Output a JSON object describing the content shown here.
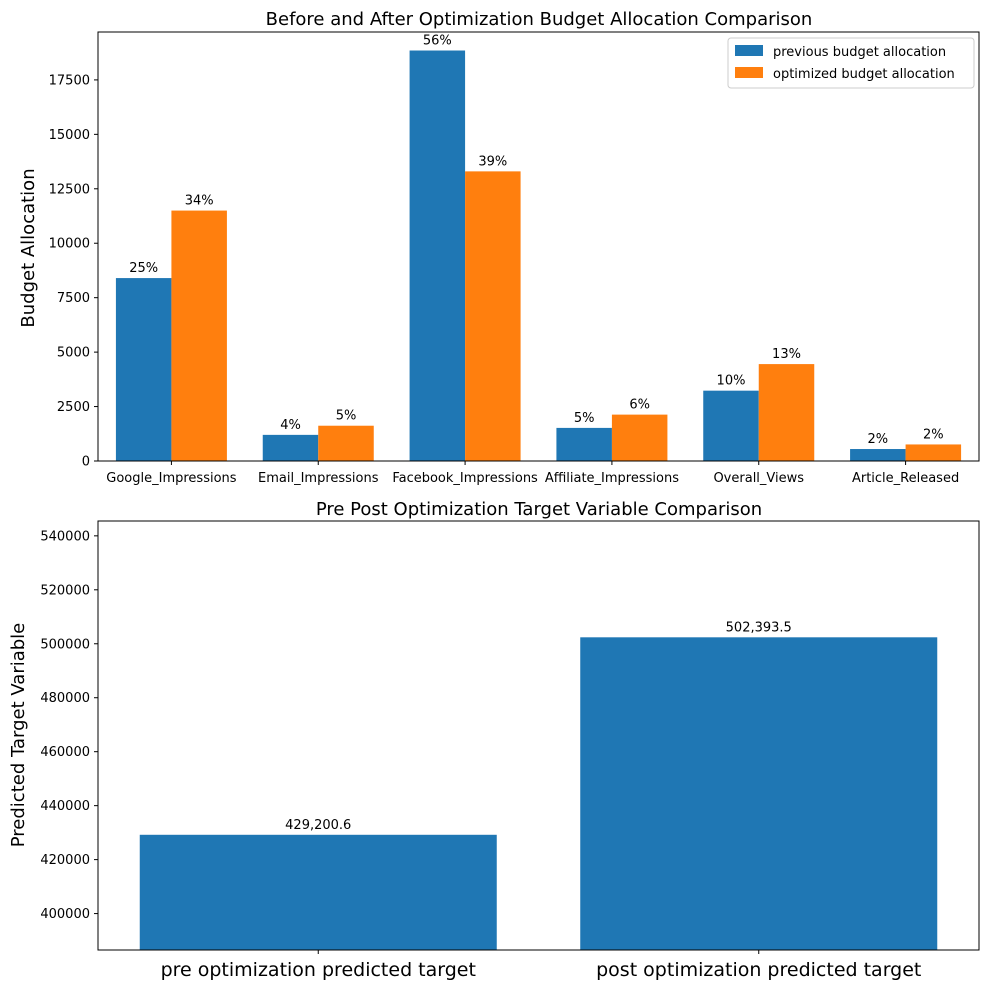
{
  "colors": {
    "series_previous": "#1f77b4",
    "series_optimized": "#ff7f0e",
    "axis": "#000000"
  },
  "chart_data": [
    {
      "type": "bar",
      "title": "Before and After Optimization Budget Allocation Comparison",
      "xlabel": "",
      "ylabel": "Budget Allocation",
      "ylim": [
        0,
        19700
      ],
      "yticks": [
        0,
        2500,
        5000,
        7500,
        10000,
        12500,
        15000,
        17500
      ],
      "legend_position": "top-right",
      "categories": [
        "Google_Impressions",
        "Email_Impressions",
        "Facebook_Impressions",
        "Affiliate_Impressions",
        "Overall_Views",
        "Article_Released"
      ],
      "series": [
        {
          "name": "previous budget allocation",
          "values": [
            8400,
            1200,
            18850,
            1520,
            3230,
            550
          ],
          "labels": [
            "25%",
            "4%",
            "56%",
            "5%",
            "10%",
            "2%"
          ]
        },
        {
          "name": "optimized budget allocation",
          "values": [
            11500,
            1620,
            13300,
            2130,
            4450,
            760
          ],
          "labels": [
            "34%",
            "5%",
            "39%",
            "6%",
            "13%",
            "2%"
          ]
        }
      ]
    },
    {
      "type": "bar",
      "title": "Pre Post Optimization Target Variable Comparison",
      "xlabel": "",
      "ylabel": "Predicted Target Variable",
      "ylim": [
        386500,
        545500
      ],
      "yticks": [
        400000,
        420000,
        440000,
        460000,
        480000,
        500000,
        520000,
        540000
      ],
      "categories": [
        "pre optimization predicted target",
        "post optimization predicted target"
      ],
      "values": [
        429200.6,
        502393.5
      ],
      "labels": [
        "429,200.6",
        "502,393.5"
      ]
    }
  ]
}
